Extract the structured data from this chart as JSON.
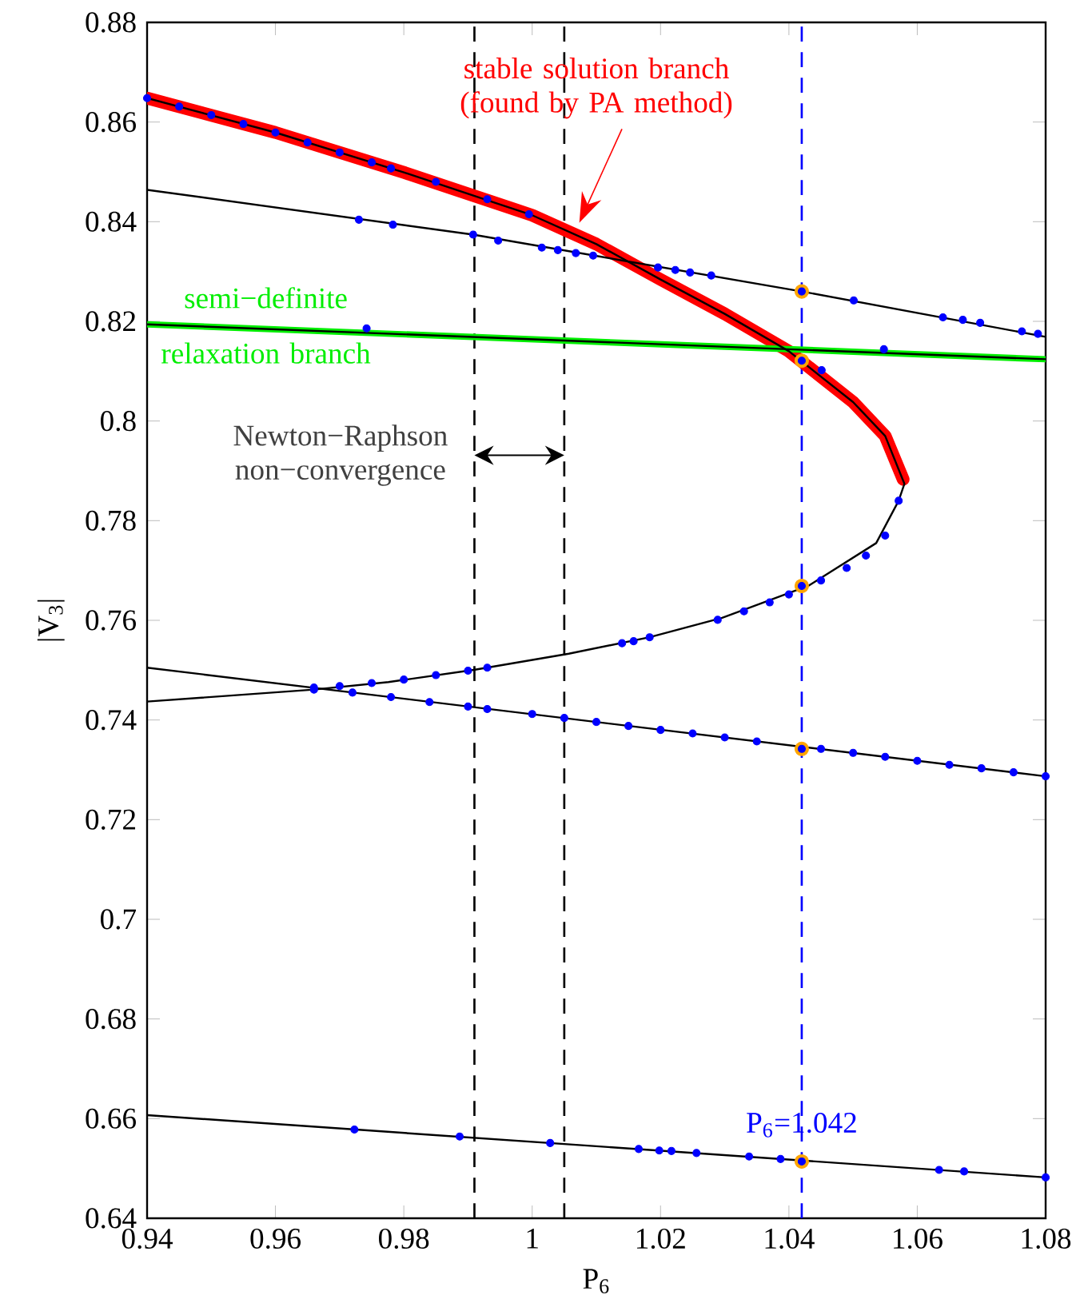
{
  "chart_data": {
    "type": "line",
    "xlabel": "P$_{6}$",
    "ylabel": "|V$_{3}$|",
    "xlim": [
      0.94,
      1.08
    ],
    "xticks": [
      0.94,
      0.96,
      0.98,
      1,
      1.02,
      1.04,
      1.06,
      1.08
    ],
    "ylim": [
      0.64,
      0.88
    ],
    "yticks": [
      0.64,
      0.66,
      0.68,
      0.7,
      0.72,
      0.74,
      0.76,
      0.78,
      0.8,
      0.82,
      0.84,
      0.86,
      0.88
    ],
    "series": [
      {
        "color": "#ff0000",
        "x": [
          0.94,
          0.96,
          0.98,
          1.0,
          1.01,
          1.02,
          1.03,
          1.04,
          1.05,
          1.055,
          1.0578
        ],
        "values": [
          0.8648,
          0.8579,
          0.8499,
          0.8413,
          0.8355,
          0.8284,
          0.8215,
          0.814,
          0.8038,
          0.797,
          0.7883
        ]
      },
      {
        "color": "#00ee00",
        "x": [
          0.94,
          1.08
        ],
        "values": [
          0.8194,
          0.8124
        ]
      },
      {
        "color": "#000000",
        "x": [
          0.94,
          0.96,
          0.98,
          1.0,
          1.01,
          1.02,
          1.03,
          1.04,
          1.05,
          1.055,
          1.058,
          1.0571,
          1.0536,
          1.043,
          1.0296,
          1.0183,
          1.0057,
          0.9911,
          0.9776,
          0.966,
          0.94
        ],
        "values": [
          0.8648,
          0.8579,
          0.8499,
          0.8413,
          0.8355,
          0.8284,
          0.8215,
          0.814,
          0.8038,
          0.797,
          0.7874,
          0.784,
          0.7755,
          0.7669,
          0.7605,
          0.7566,
          0.7533,
          0.7501,
          0.7476,
          0.7461,
          0.7437
        ]
      },
      {
        "color": "#000000",
        "x": [
          0.94,
          0.9908,
          1.042,
          1.08
        ],
        "values": [
          0.8464,
          0.8374,
          0.826,
          0.8169
        ]
      },
      {
        "color": "#000000",
        "x": [
          0.94,
          1.08
        ],
        "values": [
          0.8194,
          0.8124
        ]
      },
      {
        "color": "#000000",
        "x": [
          0.94,
          1.08
        ],
        "values": [
          0.7505,
          0.7287
        ]
      },
      {
        "color": "#000000",
        "x": [
          0.94,
          1.08
        ],
        "values": [
          0.6607,
          0.6482
        ]
      },
      {
        "type": "scatter",
        "color": "#ffa500",
        "x": [
          1.042,
          1.042,
          1.042,
          1.042,
          1.042
        ],
        "values": [
          0.826,
          0.8121,
          0.7669,
          0.7342,
          0.6514
        ]
      },
      {
        "type": "scatter",
        "color": "#0000ff",
        "x": [
          0.94,
          0.945,
          0.95,
          0.955,
          0.96,
          0.965,
          0.97,
          0.975,
          0.978,
          0.985,
          0.993,
          0.9995,
          1.0451,
          0.973,
          0.9783,
          0.9908,
          0.9947,
          1.0015,
          1.004,
          1.0068,
          1.0095,
          1.0196,
          1.0223,
          1.0246,
          1.0279,
          1.042,
          1.0501,
          1.064,
          1.0671,
          1.0698,
          1.0763,
          1.0788,
          0.9742,
          1.0548,
          1.042,
          0.966,
          0.97,
          0.975,
          0.98,
          0.985,
          0.99,
          0.993,
          1.014,
          1.0158,
          1.0183,
          1.0289,
          1.033,
          1.037,
          1.04,
          1.042,
          1.045,
          1.049,
          1.052,
          1.055,
          1.0571,
          0.966,
          0.972,
          0.978,
          0.984,
          0.99,
          0.993,
          1.0,
          1.005,
          1.01,
          1.015,
          1.02,
          1.025,
          1.03,
          1.035,
          1.042,
          1.045,
          1.05,
          1.055,
          1.06,
          1.065,
          1.07,
          1.075,
          1.08,
          0.9723,
          0.9887,
          1.0028,
          1.0166,
          1.0198,
          1.0217,
          1.0256,
          1.0338,
          1.0387,
          1.042,
          1.0634,
          1.0673,
          1.08
        ],
        "values": [
          0.8648,
          0.8631,
          0.8614,
          0.8596,
          0.8579,
          0.8559,
          0.8539,
          0.8519,
          0.8507,
          0.848,
          0.8445,
          0.8415,
          0.8102,
          0.8404,
          0.8394,
          0.8374,
          0.8362,
          0.8348,
          0.8343,
          0.8337,
          0.8332,
          0.8308,
          0.8303,
          0.8298,
          0.8292,
          0.826,
          0.8242,
          0.8208,
          0.8203,
          0.8197,
          0.818,
          0.8175,
          0.8186,
          0.8144,
          0.8121,
          0.7461,
          0.7468,
          0.7474,
          0.7481,
          0.749,
          0.7499,
          0.7505,
          0.7554,
          0.7558,
          0.7566,
          0.7601,
          0.7618,
          0.7636,
          0.7652,
          0.7669,
          0.768,
          0.7705,
          0.773,
          0.777,
          0.784,
          0.7465,
          0.7455,
          0.7446,
          0.7436,
          0.7427,
          0.7422,
          0.7412,
          0.7404,
          0.7396,
          0.7388,
          0.738,
          0.7373,
          0.7365,
          0.7357,
          0.7342,
          0.7342,
          0.7334,
          0.7326,
          0.7318,
          0.731,
          0.7303,
          0.7295,
          0.7287,
          0.6578,
          0.6564,
          0.6551,
          0.6539,
          0.6536,
          0.6535,
          0.6531,
          0.6524,
          0.6519,
          0.6514,
          0.6497,
          0.6494,
          0.6482
        ]
      }
    ],
    "ref_lines": [
      {
        "axis": "x",
        "value": 0.991,
        "label": "Newton−Raphson non−convergence",
        "color": "#000000",
        "line_style": "dashed"
      },
      {
        "axis": "x",
        "value": 1.005,
        "color": "#000000",
        "line_style": "dashed"
      },
      {
        "axis": "x",
        "value": 1.042,
        "label": "P$_{6}$=1.042",
        "color": "#0000ff",
        "line_style": "dashed"
      }
    ],
    "annotations": [
      "stable solution branch (found by PA method)",
      {
        "text": "semi−definite relaxation branch",
        "x": 0.9585,
        "y": 0.8192
      }
    ]
  }
}
